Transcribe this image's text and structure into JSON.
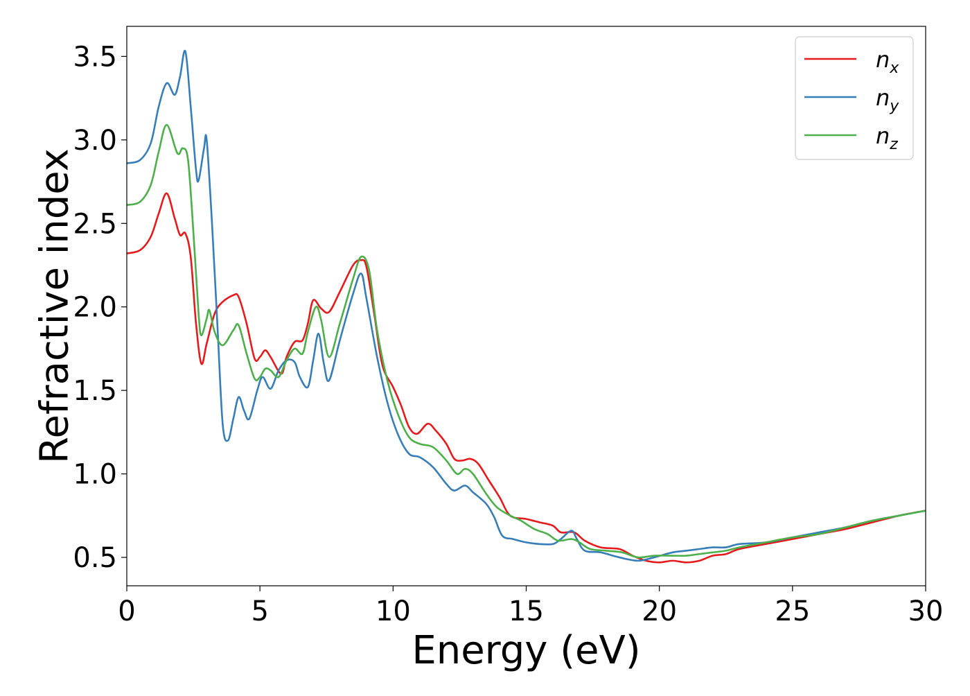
{
  "chart_data": {
    "type": "line",
    "title": "",
    "xlabel": "Energy (eV)",
    "ylabel": "Refractive index",
    "xlim": [
      0,
      30
    ],
    "ylim": [
      0.33,
      3.68
    ],
    "xticks": [
      0,
      5,
      10,
      15,
      20,
      25,
      30
    ],
    "yticks": [
      0.5,
      1.0,
      1.5,
      2.0,
      2.5,
      3.0,
      3.5
    ],
    "grid": false,
    "legend_position": "top-right",
    "series": [
      {
        "name": "n_x",
        "label_base": "n",
        "label_sub": "x",
        "color": "#e41a1c",
        "points": [
          [
            0,
            2.32
          ],
          [
            0.5,
            2.34
          ],
          [
            0.9,
            2.42
          ],
          [
            1.2,
            2.56
          ],
          [
            1.5,
            2.68
          ],
          [
            1.8,
            2.53
          ],
          [
            2.0,
            2.43
          ],
          [
            2.2,
            2.44
          ],
          [
            2.4,
            2.3
          ],
          [
            2.6,
            1.9
          ],
          [
            2.8,
            1.66
          ],
          [
            3.0,
            1.78
          ],
          [
            3.3,
            1.96
          ],
          [
            3.6,
            2.03
          ],
          [
            4.0,
            2.07
          ],
          [
            4.2,
            2.06
          ],
          [
            4.5,
            1.9
          ],
          [
            4.8,
            1.69
          ],
          [
            5.0,
            1.7
          ],
          [
            5.2,
            1.74
          ],
          [
            5.4,
            1.7
          ],
          [
            5.8,
            1.6
          ],
          [
            6.0,
            1.7
          ],
          [
            6.3,
            1.79
          ],
          [
            6.6,
            1.8
          ],
          [
            6.8,
            1.9
          ],
          [
            7.0,
            2.04
          ],
          [
            7.3,
            1.99
          ],
          [
            7.6,
            1.97
          ],
          [
            8.0,
            2.09
          ],
          [
            8.5,
            2.25
          ],
          [
            8.8,
            2.28
          ],
          [
            9.0,
            2.24
          ],
          [
            9.3,
            1.95
          ],
          [
            9.6,
            1.65
          ],
          [
            10.0,
            1.52
          ],
          [
            10.3,
            1.41
          ],
          [
            10.6,
            1.28
          ],
          [
            10.9,
            1.24
          ],
          [
            11.3,
            1.3
          ],
          [
            11.6,
            1.26
          ],
          [
            12.0,
            1.18
          ],
          [
            12.3,
            1.09
          ],
          [
            12.6,
            1.08
          ],
          [
            12.9,
            1.09
          ],
          [
            13.2,
            1.06
          ],
          [
            13.6,
            0.96
          ],
          [
            14.0,
            0.86
          ],
          [
            14.4,
            0.75
          ],
          [
            15.0,
            0.73
          ],
          [
            15.5,
            0.71
          ],
          [
            16.0,
            0.69
          ],
          [
            16.3,
            0.65
          ],
          [
            16.8,
            0.65
          ],
          [
            17.2,
            0.6
          ],
          [
            17.8,
            0.56
          ],
          [
            18.5,
            0.55
          ],
          [
            19.0,
            0.51
          ],
          [
            19.5,
            0.48
          ],
          [
            20.0,
            0.47
          ],
          [
            20.5,
            0.48
          ],
          [
            21.0,
            0.47
          ],
          [
            21.5,
            0.48
          ],
          [
            22.0,
            0.51
          ],
          [
            22.5,
            0.52
          ],
          [
            23.0,
            0.55
          ],
          [
            24.0,
            0.58
          ],
          [
            25.0,
            0.61
          ],
          [
            26.0,
            0.64
          ],
          [
            27.0,
            0.67
          ],
          [
            28.0,
            0.71
          ],
          [
            29.0,
            0.75
          ],
          [
            30.0,
            0.78
          ]
        ]
      },
      {
        "name": "n_y",
        "label_base": "n",
        "label_sub": "y",
        "color": "#377eb8",
        "points": [
          [
            0,
            2.86
          ],
          [
            0.5,
            2.88
          ],
          [
            0.9,
            2.98
          ],
          [
            1.2,
            3.2
          ],
          [
            1.5,
            3.34
          ],
          [
            1.8,
            3.27
          ],
          [
            2.0,
            3.38
          ],
          [
            2.2,
            3.53
          ],
          [
            2.4,
            3.2
          ],
          [
            2.6,
            2.82
          ],
          [
            2.7,
            2.76
          ],
          [
            2.9,
            2.95
          ],
          [
            3.0,
            3.0
          ],
          [
            3.2,
            2.5
          ],
          [
            3.4,
            1.9
          ],
          [
            3.6,
            1.3
          ],
          [
            3.8,
            1.2
          ],
          [
            4.0,
            1.33
          ],
          [
            4.2,
            1.46
          ],
          [
            4.4,
            1.38
          ],
          [
            4.6,
            1.33
          ],
          [
            4.9,
            1.5
          ],
          [
            5.1,
            1.58
          ],
          [
            5.4,
            1.51
          ],
          [
            5.7,
            1.62
          ],
          [
            6.0,
            1.68
          ],
          [
            6.3,
            1.67
          ],
          [
            6.5,
            1.58
          ],
          [
            6.8,
            1.52
          ],
          [
            7.0,
            1.68
          ],
          [
            7.2,
            1.84
          ],
          [
            7.4,
            1.66
          ],
          [
            7.6,
            1.56
          ],
          [
            8.0,
            1.8
          ],
          [
            8.5,
            2.08
          ],
          [
            8.8,
            2.2
          ],
          [
            9.0,
            2.05
          ],
          [
            9.4,
            1.7
          ],
          [
            9.8,
            1.42
          ],
          [
            10.2,
            1.23
          ],
          [
            10.6,
            1.12
          ],
          [
            11.0,
            1.1
          ],
          [
            11.5,
            1.04
          ],
          [
            12.0,
            0.94
          ],
          [
            12.3,
            0.9
          ],
          [
            12.7,
            0.93
          ],
          [
            13.0,
            0.89
          ],
          [
            13.5,
            0.82
          ],
          [
            13.8,
            0.74
          ],
          [
            14.1,
            0.63
          ],
          [
            14.5,
            0.61
          ],
          [
            15.0,
            0.59
          ],
          [
            15.5,
            0.58
          ],
          [
            16.0,
            0.58
          ],
          [
            16.3,
            0.61
          ],
          [
            16.7,
            0.66
          ],
          [
            16.9,
            0.61
          ],
          [
            17.2,
            0.54
          ],
          [
            17.8,
            0.53
          ],
          [
            18.5,
            0.5
          ],
          [
            19.2,
            0.48
          ],
          [
            19.8,
            0.5
          ],
          [
            20.5,
            0.53
          ],
          [
            21.0,
            0.54
          ],
          [
            21.5,
            0.55
          ],
          [
            22.0,
            0.56
          ],
          [
            22.5,
            0.56
          ],
          [
            23.0,
            0.58
          ],
          [
            24.0,
            0.59
          ],
          [
            25.0,
            0.62
          ],
          [
            26.0,
            0.65
          ],
          [
            27.0,
            0.68
          ],
          [
            28.0,
            0.72
          ],
          [
            29.0,
            0.75
          ],
          [
            30.0,
            0.78
          ]
        ]
      },
      {
        "name": "n_z",
        "label_base": "n",
        "label_sub": "z",
        "color": "#4daf4a",
        "points": [
          [
            0,
            2.61
          ],
          [
            0.5,
            2.63
          ],
          [
            0.9,
            2.73
          ],
          [
            1.2,
            2.93
          ],
          [
            1.5,
            3.09
          ],
          [
            1.9,
            2.92
          ],
          [
            2.1,
            2.95
          ],
          [
            2.3,
            2.88
          ],
          [
            2.5,
            2.45
          ],
          [
            2.7,
            1.95
          ],
          [
            2.8,
            1.83
          ],
          [
            3.0,
            1.93
          ],
          [
            3.1,
            1.98
          ],
          [
            3.3,
            1.85
          ],
          [
            3.6,
            1.77
          ],
          [
            4.0,
            1.86
          ],
          [
            4.2,
            1.89
          ],
          [
            4.5,
            1.72
          ],
          [
            4.8,
            1.57
          ],
          [
            5.0,
            1.58
          ],
          [
            5.2,
            1.63
          ],
          [
            5.4,
            1.62
          ],
          [
            5.7,
            1.58
          ],
          [
            6.0,
            1.68
          ],
          [
            6.3,
            1.75
          ],
          [
            6.6,
            1.72
          ],
          [
            6.8,
            1.85
          ],
          [
            7.1,
            2.0
          ],
          [
            7.3,
            1.92
          ],
          [
            7.6,
            1.7
          ],
          [
            8.0,
            1.9
          ],
          [
            8.5,
            2.17
          ],
          [
            8.8,
            2.3
          ],
          [
            9.1,
            2.22
          ],
          [
            9.4,
            1.86
          ],
          [
            9.8,
            1.55
          ],
          [
            10.2,
            1.35
          ],
          [
            10.6,
            1.22
          ],
          [
            11.0,
            1.18
          ],
          [
            11.5,
            1.16
          ],
          [
            12.0,
            1.08
          ],
          [
            12.4,
            1.0
          ],
          [
            12.7,
            1.03
          ],
          [
            13.0,
            1.0
          ],
          [
            13.5,
            0.88
          ],
          [
            13.9,
            0.8
          ],
          [
            14.4,
            0.75
          ],
          [
            14.8,
            0.72
          ],
          [
            15.3,
            0.67
          ],
          [
            15.8,
            0.64
          ],
          [
            16.2,
            0.6
          ],
          [
            16.7,
            0.61
          ],
          [
            17.0,
            0.59
          ],
          [
            17.4,
            0.55
          ],
          [
            18.0,
            0.54
          ],
          [
            18.6,
            0.53
          ],
          [
            19.2,
            0.5
          ],
          [
            19.8,
            0.51
          ],
          [
            20.5,
            0.51
          ],
          [
            21.0,
            0.51
          ],
          [
            21.5,
            0.52
          ],
          [
            22.0,
            0.53
          ],
          [
            22.5,
            0.54
          ],
          [
            23.0,
            0.56
          ],
          [
            24.0,
            0.59
          ],
          [
            25.0,
            0.62
          ],
          [
            26.0,
            0.64
          ],
          [
            27.0,
            0.68
          ],
          [
            28.0,
            0.72
          ],
          [
            29.0,
            0.75
          ],
          [
            30.0,
            0.78
          ]
        ]
      }
    ]
  }
}
